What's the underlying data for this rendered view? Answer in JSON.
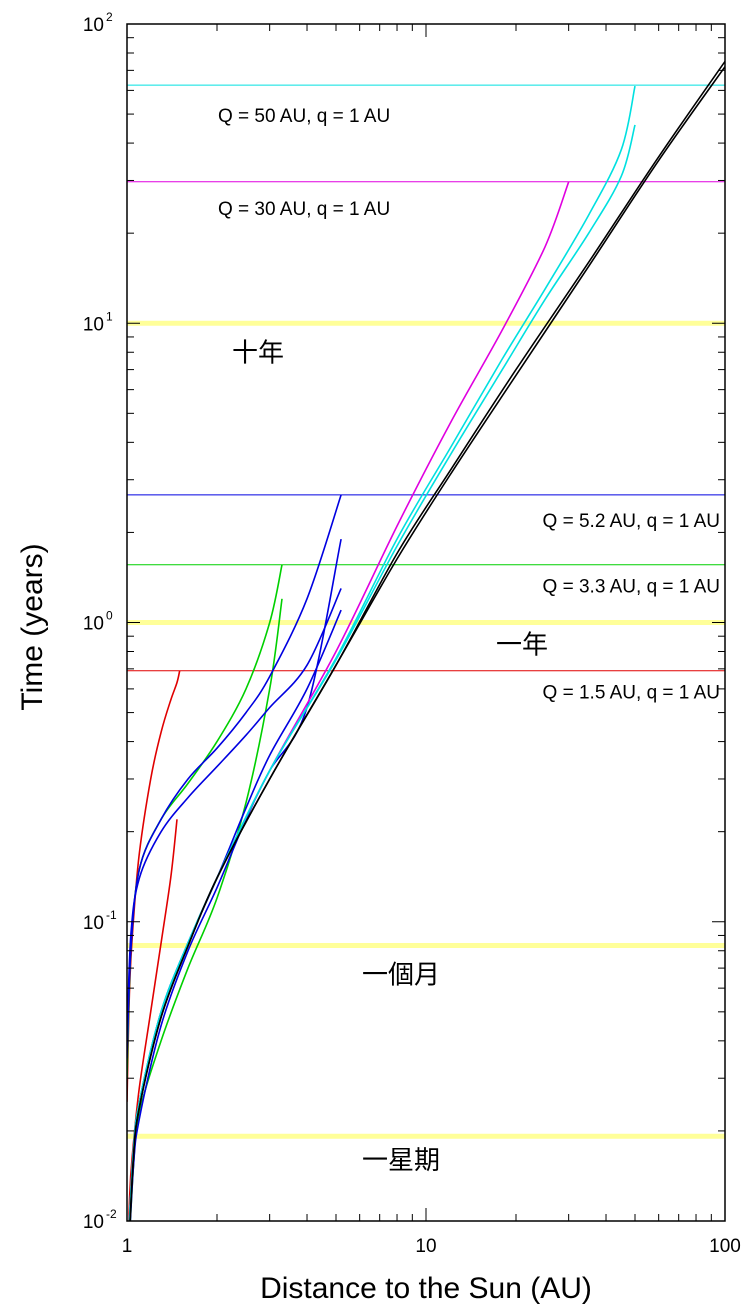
{
  "chart_data": {
    "type": "line",
    "xlabel": "Distance to the Sun (AU)",
    "ylabel": "Time (years)",
    "xscale": "log",
    "yscale": "log",
    "xlim": [
      1,
      100
    ],
    "ylim": [
      0.01,
      100
    ],
    "x_ticks": [
      {
        "value": 1,
        "label": "1"
      },
      {
        "value": 10,
        "label": "10"
      },
      {
        "value": 100,
        "label": "100"
      }
    ],
    "y_ticks": [
      {
        "value": 0.01,
        "base": "10",
        "exp": "-2"
      },
      {
        "value": 0.1,
        "base": "10",
        "exp": "-1"
      },
      {
        "value": 1,
        "base": "10",
        "exp": "0"
      },
      {
        "value": 10,
        "base": "10",
        "exp": "1"
      },
      {
        "value": 100,
        "base": "10",
        "exp": "2"
      }
    ],
    "grid": false,
    "reference_lines": [
      {
        "label": "Q = 50 AU, q = 1 AU",
        "value": 62.5,
        "color": "#00e0e0"
      },
      {
        "label": "Q = 30 AU, q = 1 AU",
        "value": 29.7,
        "color": "#e000e0"
      },
      {
        "label": "Q = 5.2 AU, q = 1 AU",
        "value": 2.67,
        "color": "#0000e0"
      },
      {
        "label": "Q = 3.3 AU, q = 1 AU",
        "value": 1.56,
        "color": "#00d000"
      },
      {
        "label": "Q = 1.5 AU, q = 1 AU",
        "value": 0.69,
        "color": "#e00000"
      }
    ],
    "time_markers": [
      {
        "label": "十年",
        "value": 10,
        "color": "#ffff99"
      },
      {
        "label": "一年",
        "value": 1,
        "color": "#ffff99"
      },
      {
        "label": "一個月",
        "value": 0.0833,
        "color": "#ffff99"
      },
      {
        "label": "一星期",
        "value": 0.0192,
        "color": "#ffff99"
      }
    ],
    "series": [
      {
        "color": "#e00000",
        "x": [
          1.0,
          1.02,
          1.05,
          1.1,
          1.2,
          1.3,
          1.4,
          1.47,
          1.5
        ],
        "y": [
          0.025,
          0.06,
          0.1,
          0.17,
          0.3,
          0.43,
          0.55,
          0.63,
          0.69
        ]
      },
      {
        "color": "#e00000",
        "x": [
          1.0,
          1.02,
          1.05,
          1.1,
          1.2,
          1.3,
          1.4,
          1.47
        ],
        "y": [
          0.005,
          0.012,
          0.018,
          0.028,
          0.05,
          0.085,
          0.14,
          0.22
        ]
      },
      {
        "color": "#00d000",
        "x": [
          1.0,
          1.03,
          1.1,
          1.3,
          1.6,
          2.0,
          2.5,
          3.0,
          3.3
        ],
        "y": [
          0.03,
          0.08,
          0.15,
          0.22,
          0.29,
          0.4,
          0.6,
          1.0,
          1.56
        ]
      },
      {
        "color": "#00d000",
        "x": [
          1.0,
          1.05,
          1.1,
          1.3,
          1.6,
          2.0,
          2.5,
          3.0,
          3.3
        ],
        "y": [
          0.006,
          0.015,
          0.023,
          0.04,
          0.07,
          0.12,
          0.25,
          0.6,
          1.2
        ]
      },
      {
        "color": "#0000e0",
        "x": [
          1.0,
          1.03,
          1.1,
          1.3,
          1.6,
          2.0,
          2.5,
          3.0,
          4.0,
          5.2
        ],
        "y": [
          0.035,
          0.08,
          0.15,
          0.22,
          0.3,
          0.38,
          0.5,
          0.66,
          1.2,
          2.67
        ]
      },
      {
        "color": "#0000e0",
        "x": [
          1.0,
          1.03,
          1.1,
          1.3,
          1.6,
          2.0,
          2.5,
          3.0,
          4.0,
          5.2
        ],
        "y": [
          0.04,
          0.09,
          0.14,
          0.2,
          0.26,
          0.33,
          0.42,
          0.52,
          0.72,
          1.3
        ]
      },
      {
        "color": "#0000e0",
        "x": [
          1.0,
          1.05,
          1.1,
          1.3,
          1.6,
          2.0,
          2.5,
          3.0,
          4.0,
          5.2
        ],
        "y": [
          0.006,
          0.015,
          0.022,
          0.045,
          0.08,
          0.13,
          0.22,
          0.32,
          0.52,
          1.9
        ]
      },
      {
        "color": "#0000e0",
        "x": [
          1.0,
          1.05,
          1.1,
          1.3,
          1.6,
          2.0,
          2.5,
          3.0,
          4.0,
          5.2
        ],
        "y": [
          0.007,
          0.017,
          0.025,
          0.05,
          0.085,
          0.14,
          0.24,
          0.36,
          0.6,
          1.1
        ]
      },
      {
        "color": "#e000e0",
        "x": [
          1.0,
          1.05,
          1.1,
          1.3,
          1.6,
          2,
          3,
          5,
          8,
          12,
          18,
          25,
          30
        ],
        "y": [
          0.007,
          0.017,
          0.025,
          0.05,
          0.085,
          0.14,
          0.32,
          0.8,
          2.1,
          4.6,
          9.5,
          18,
          29.7
        ]
      },
      {
        "color": "#00e0e0",
        "x": [
          1.0,
          1.05,
          1.1,
          1.3,
          1.6,
          2,
          3,
          5,
          8,
          12,
          18,
          25,
          35,
          45,
          50
        ],
        "y": [
          0.007,
          0.017,
          0.025,
          0.05,
          0.085,
          0.14,
          0.32,
          0.76,
          1.9,
          3.8,
          7.6,
          13,
          23,
          38,
          62
        ]
      },
      {
        "color": "#00e0e0",
        "x": [
          1.0,
          1.05,
          1.1,
          1.3,
          1.6,
          2,
          3,
          5,
          8,
          12,
          18,
          25,
          35,
          45,
          50
        ],
        "y": [
          0.007,
          0.017,
          0.025,
          0.05,
          0.085,
          0.14,
          0.32,
          0.75,
          1.8,
          3.6,
          7.0,
          12,
          20,
          31,
          46
        ]
      },
      {
        "color": "#000000",
        "x": [
          1.0,
          1.05,
          1.1,
          1.3,
          1.6,
          2,
          3,
          5,
          8,
          12,
          20,
          35,
          60,
          100
        ],
        "y": [
          0.006,
          0.016,
          0.024,
          0.048,
          0.083,
          0.14,
          0.3,
          0.72,
          1.7,
          3.2,
          7.0,
          16,
          36,
          75
        ]
      },
      {
        "color": "#000000",
        "x": [
          1.0,
          1.05,
          1.1,
          1.3,
          1.6,
          2,
          3,
          5,
          8,
          12,
          20,
          35,
          60,
          100
        ],
        "y": [
          0.006,
          0.016,
          0.024,
          0.048,
          0.083,
          0.14,
          0.3,
          0.72,
          1.63,
          3.1,
          6.7,
          15.5,
          35,
          72
        ]
      }
    ]
  }
}
